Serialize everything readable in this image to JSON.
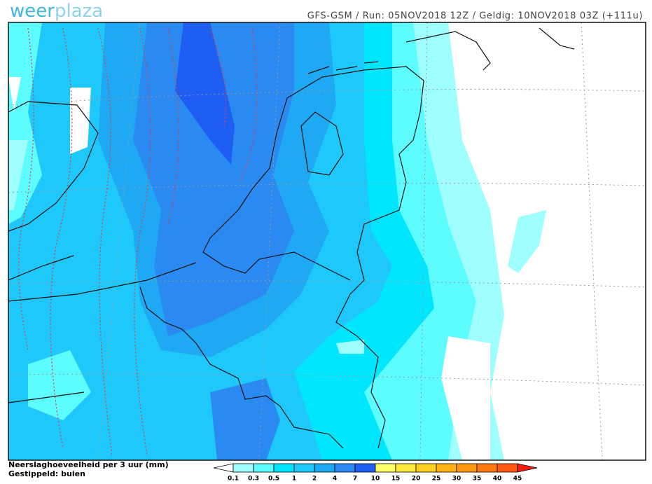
{
  "header": {
    "logo_part1": "weer",
    "logo_part2": "plaza",
    "info": "GFS-GSM / Run: 05NOV2018 12Z / Geldig: 10NOV2018 03Z (+111u)"
  },
  "legend": {
    "title": "Neerslaghoeveelheid per 3 uur (mm)",
    "subtitle": "Gestippeld: buien",
    "ticks": [
      0.1,
      0.3,
      0.5,
      1,
      2,
      4,
      7,
      10,
      15,
      20,
      25,
      30,
      35,
      40,
      45
    ],
    "colors": [
      "#ffffff",
      "#9ffffe",
      "#5cfcff",
      "#00e6ff",
      "#1ec8fa",
      "#1fa9f5",
      "#2a8af2",
      "#1e5ef2",
      "#ffff66",
      "#ffe83c",
      "#ffd020",
      "#ffb414",
      "#ff9a10",
      "#ff7a10",
      "#ff5a10",
      "#f01e10"
    ]
  }
}
